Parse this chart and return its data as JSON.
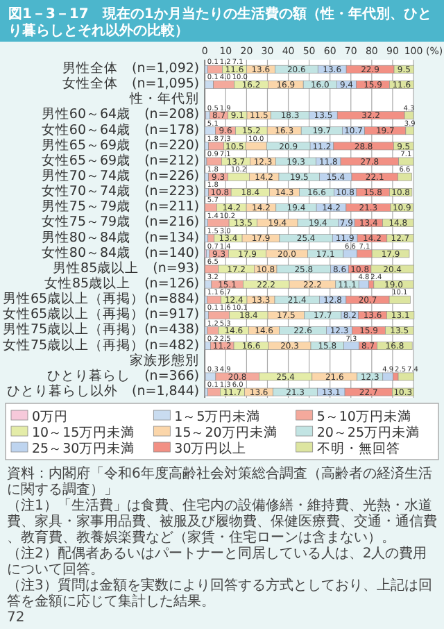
{
  "chart_data": {
    "type": "bar",
    "orientation": "horizontal",
    "stacked": true,
    "title": "図1－3－17　現在の1か月当たりの生活費の額（性・年代別、ひとり暮らしとそれ以外の比較）",
    "xlabel": "(%)",
    "xlim": [
      0,
      100
    ],
    "xticks": [
      0,
      10,
      20,
      30,
      40,
      50,
      60,
      70,
      80,
      90,
      100
    ],
    "grid": "x",
    "legend": "bottom",
    "categories": [
      "男性全体　(n=1,092)",
      "女性全体　(n=1,095)",
      "性・年代別",
      "男性60～64歳　(n=208)",
      "女性60～64歳　(n=178)",
      "男性65～69歳　(n=220)",
      "女性65～69歳　(n=212)",
      "男性70～74歳　(n=226)",
      "女性70～74歳　(n=223)",
      "男性75～79歳　(n=211)",
      "女性75～79歳　(n=216)",
      "男性80～84歳　(n=134)",
      "女性80～84歳　(n=140)",
      "男性85歳以上　(n=93)",
      "女性85歳以上　(n=126)",
      "男性65歳以上（再掲）(n=884)",
      "女性65歳以上（再掲）(n=917)",
      "男性75歳以上（再掲）(n=438)",
      "女性75歳以上（再掲）(n=482)",
      "家族形態別",
      "ひとり暮らし　(n=366)",
      "ひとり暮らし以外　(n=1,844)"
    ],
    "series": [
      {
        "name": "0万円",
        "color": "#f6c9da",
        "values": [
          0.1,
          0.1,
          null,
          0.5,
          null,
          null,
          null,
          null,
          null,
          null,
          null,
          null,
          0.7,
          null,
          null,
          null,
          0.1,
          null,
          0.2,
          null,
          0.3,
          0.1
        ],
        "value_labels": [
          "0.1",
          "0.1",
          null,
          "0.5",
          null,
          null,
          null,
          null,
          null,
          null,
          null,
          null,
          "0.7",
          null,
          null,
          null,
          "0.1",
          null,
          "0.2",
          null,
          "0.3",
          "0.1"
        ]
      },
      {
        "name": "1～5万円未満",
        "color": "#c9dcf0",
        "values": [
          1.2,
          4.0,
          null,
          1.9,
          5.1,
          1.8,
          0.9,
          1.8,
          1.8,
          null,
          1.4,
          1.5,
          1.4,
          null,
          3.2,
          1.1,
          1.6,
          1.2,
          2.5,
          null,
          4.9,
          1.3
        ],
        "value_labels": [
          "1.2",
          "4.0",
          null,
          "1.9",
          "5.1",
          "1.8",
          "0.9",
          "1.8",
          "1.8",
          null,
          "1.4",
          "1.5",
          "1.4",
          null,
          "3.2",
          "1.1",
          "1.6",
          "1.2",
          "2.5",
          null,
          "4.9",
          "1.3"
        ]
      },
      {
        "name": "5～10万円未満",
        "color": "#f4a99c",
        "values": [
          7.1,
          10.0,
          null,
          8.7,
          9.6,
          7.3,
          7.1,
          9.3,
          10.8,
          5.7,
          10.2,
          3.0,
          9.3,
          6.5,
          15.1,
          6.7,
          10.1,
          5.3,
          11.2,
          null,
          20.8,
          6.0
        ],
        "value_labels": [
          "7.1",
          "10.0",
          null,
          "8.7",
          "9.6",
          "7.3",
          "7.1",
          "9.3",
          "10.8",
          "5.7",
          "10.2",
          "3.0",
          "9.3",
          "6.5",
          "15.1",
          "6.7",
          "10.1",
          "5.3",
          "11.2",
          null,
          "20.8",
          "6.0"
        ]
      },
      {
        "name": "10～15万円未満",
        "color": "#e4eca8",
        "values": [
          11.6,
          16.2,
          null,
          9.1,
          15.2,
          10.5,
          13.7,
          10.2,
          18.4,
          14.2,
          13.5,
          13.4,
          17.9,
          17.2,
          22.2,
          12.4,
          18.4,
          14.6,
          16.6,
          null,
          25.4,
          11.7
        ],
        "value_labels": [
          "11.6",
          "16.2",
          null,
          "9.1",
          "15.2",
          "10.5",
          "13.7",
          "10.2",
          "18.4",
          "14.2",
          "13.5",
          "13.4",
          "17.9",
          "17.2",
          "22.2",
          "12.4",
          "18.4",
          "14.6",
          "16.6",
          null,
          "25.4",
          "11.7"
        ]
      },
      {
        "name": "15～20万円未満",
        "color": "#fbd6aa",
        "values": [
          13.6,
          16.9,
          null,
          11.5,
          16.3,
          10.0,
          12.3,
          14.2,
          14.3,
          14.2,
          19.4,
          17.9,
          20.0,
          10.8,
          22.2,
          13.3,
          17.5,
          14.6,
          20.3,
          null,
          21.6,
          13.6
        ],
        "value_labels": [
          "13.6",
          "16.9",
          null,
          "11.5",
          "16.3",
          "10.0",
          "12.3",
          "14.2",
          "14.3",
          "14.2",
          "19.4",
          "17.9",
          "20.0",
          "10.8",
          "22.2",
          "13.3",
          "17.5",
          "14.6",
          "20.3",
          null,
          "21.6",
          "13.6"
        ]
      },
      {
        "name": "20～25万円未満",
        "color": "#c2e4e3",
        "values": [
          20.6,
          16.0,
          null,
          18.3,
          19.7,
          20.9,
          19.3,
          19.5,
          16.6,
          19.4,
          19.4,
          25.4,
          17.1,
          25.8,
          11.1,
          21.4,
          17.7,
          22.6,
          15.8,
          null,
          12.3,
          21.3
        ],
        "value_labels": [
          "20.6",
          "16.0",
          null,
          "18.3",
          "19.7",
          "20.9",
          "19.3",
          "19.5",
          "16.6",
          "19.4",
          "19.4",
          "25.4",
          "17.1",
          "25.8",
          "11.1",
          "21.4",
          "17.7",
          "22.6",
          "15.8",
          null,
          "12.3",
          "21.3"
        ]
      },
      {
        "name": "25～30万円未満",
        "color": "#bed4ef",
        "values": [
          13.6,
          9.4,
          null,
          13.5,
          10.7,
          11.2,
          11.8,
          15.4,
          10.8,
          14.2,
          7.9,
          11.9,
          6.6,
          8.6,
          4.8,
          12.8,
          8.2,
          12.3,
          7.3,
          null,
          4.9,
          13.1
        ],
        "value_labels": [
          "13.6",
          "9.4",
          null,
          "13.5",
          "10.7",
          "11.2",
          "11.8",
          "15.4",
          "10.8",
          "14.2",
          "7.9",
          "11.9",
          "6.6",
          "8.6",
          "4.8",
          "12.8",
          "8.2",
          "12.3",
          "7.3",
          null,
          "4.9",
          "13.1"
        ]
      },
      {
        "name": "30万円以上",
        "color": "#f29084",
        "values": [
          22.9,
          15.9,
          null,
          32.2,
          19.7,
          28.8,
          27.8,
          22.1,
          15.8,
          21.3,
          13.4,
          14.2,
          7.1,
          10.8,
          2.4,
          20.7,
          13.6,
          15.9,
          8.7,
          null,
          2.5,
          22.7
        ],
        "value_labels": [
          "22.9",
          "15.9",
          null,
          "32.2",
          "19.7",
          "28.8",
          "27.8",
          "22.1",
          "15.8",
          "21.3",
          "13.4",
          "14.2",
          "7.1",
          "10.8",
          "2.4",
          "20.7",
          "13.6",
          "15.9",
          "8.7",
          null,
          "2.5",
          "22.7"
        ]
      },
      {
        "name": "不明・無回答",
        "color": "#dde5a0",
        "values": [
          9.5,
          11.6,
          null,
          4.3,
          3.9,
          9.5,
          7.1,
          6.6,
          10.8,
          10.9,
          14.8,
          12.7,
          17.9,
          20.4,
          19.0,
          10.1,
          13.1,
          13.5,
          16.8,
          null,
          7.4,
          10.3
        ],
        "value_labels": [
          "9.5",
          "11.6",
          null,
          "4.3",
          "3.9",
          "9.5",
          "7.1",
          "6.6",
          "10.8",
          "10.9",
          "14.8",
          "12.7",
          "17.9",
          "20.4",
          "19.0",
          "10.1",
          "13.1",
          "13.5",
          "16.8",
          null,
          "7.4",
          "10.3"
        ]
      }
    ],
    "annotations": [
      "資料：内閣府「令和6年度高齢社会対策総合調査（高齢者の経済生活に関する調査）」",
      "（注1）「生活費」は食費、住宅内の設備修繕・維持費、光熱・水道費、家具・家事用品費、被服及び履物費、保健医療費、交通・通信費、教育費、教養娯楽費など（家賃・住宅ローンは含まない）。",
      "（注2）配偶者あるいはパートナーと同居している人は、2人の費用について回答。",
      "（注3）質問は金額を実数により回答する方式としており、上記は回答を金額に応じて集計した結果。",
      "72"
    ]
  }
}
